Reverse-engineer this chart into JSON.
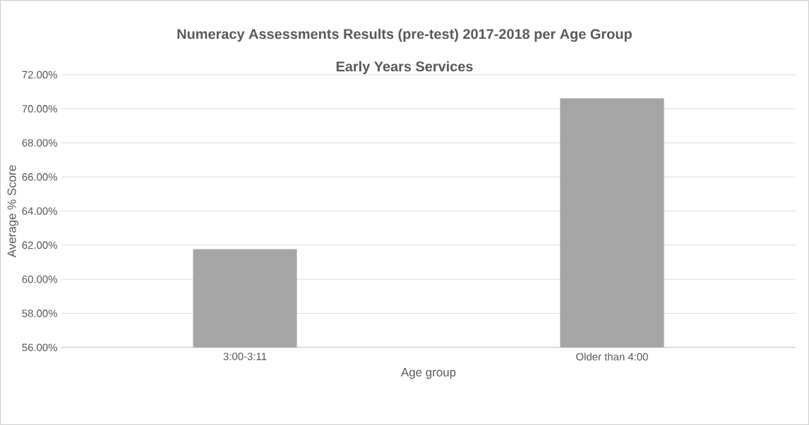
{
  "chart_data": {
    "type": "bar",
    "title": "Numeracy Assessments Results (pre-test) 2017-2018 per Age Group",
    "subtitle": "Early Years Services",
    "xlabel": "Age group",
    "ylabel": "Average % Score",
    "categories": [
      "3:00-3:11",
      "Older than 4:00"
    ],
    "values": [
      61.77,
      70.61
    ],
    "color": "#a5a5a5",
    "ylim": [
      56,
      72
    ],
    "yticks": [
      {
        "value": 56,
        "label": "56.00%"
      },
      {
        "value": 58,
        "label": "58.00%"
      },
      {
        "value": 60,
        "label": "60.00%"
      },
      {
        "value": 62,
        "label": "62.00%"
      },
      {
        "value": 64,
        "label": "64.00%"
      },
      {
        "value": 66,
        "label": "66.00%"
      },
      {
        "value": 68,
        "label": "68.00%"
      },
      {
        "value": 70,
        "label": "70.00%"
      },
      {
        "value": 72,
        "label": "72.00%"
      }
    ],
    "grid": "y"
  }
}
